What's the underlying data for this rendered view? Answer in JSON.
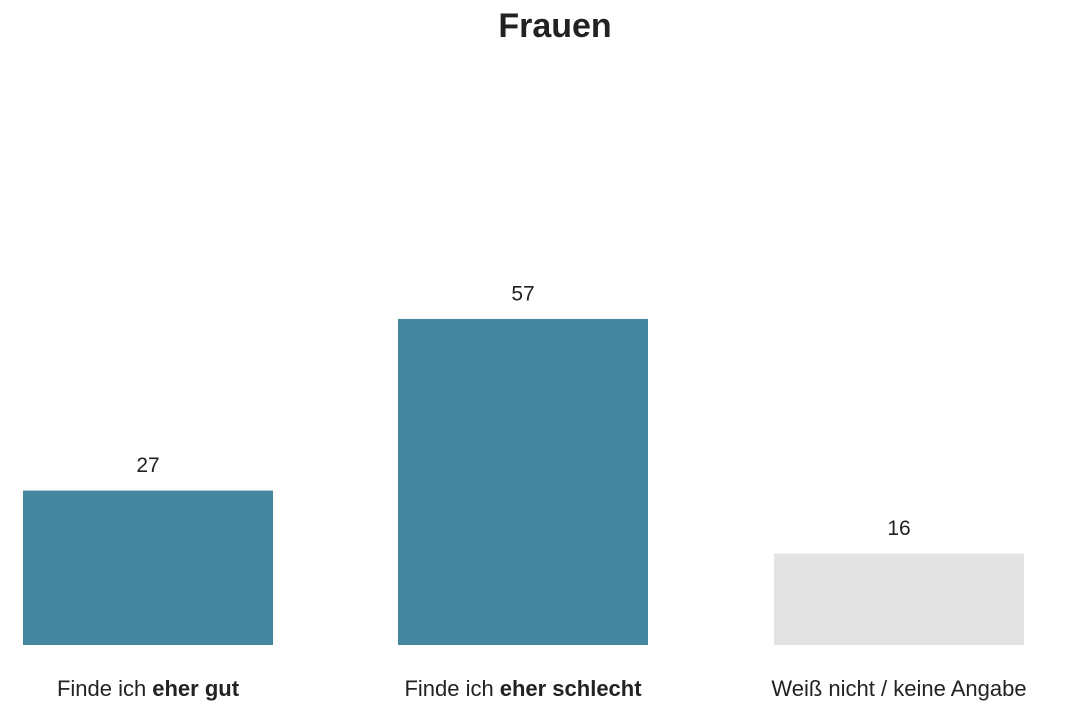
{
  "chart_data": {
    "type": "bar",
    "title": "Frauen",
    "categories": [
      [
        {
          "text": "Finde ich",
          "bold": false
        },
        {
          "text": "eher gut",
          "bold": true
        }
      ],
      [
        {
          "text": "Finde ich",
          "bold": false
        },
        {
          "text": "eher schlecht",
          "bold": true
        }
      ],
      [
        {
          "text": "Weiß nicht / keine Angabe",
          "bold": false
        }
      ]
    ],
    "values": [
      27,
      57,
      16
    ],
    "colors": [
      "#44869e",
      "#44869e",
      "#e3e3e3"
    ]
  }
}
